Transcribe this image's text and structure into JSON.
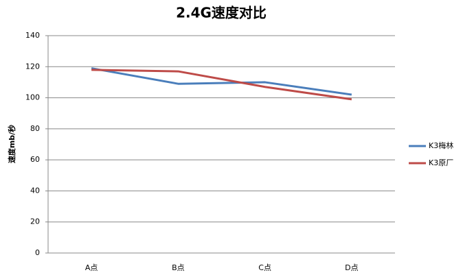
{
  "chart_data": {
    "type": "line",
    "title": "2.4G速度对比",
    "y_label": "速度mb/秒",
    "categories": [
      "A点",
      "B点",
      "C点",
      "D点"
    ],
    "series": [
      {
        "name": "K3梅林",
        "color": "#4a7ebb",
        "values": [
          119,
          109,
          110,
          102
        ]
      },
      {
        "name": "K3原厂",
        "color": "#be4b48",
        "values": [
          118,
          117,
          107,
          99
        ]
      }
    ],
    "ylim": [
      0,
      140
    ],
    "yticks": [
      0,
      20,
      40,
      60,
      80,
      100,
      120,
      140
    ],
    "grid": true,
    "legend": "right"
  }
}
